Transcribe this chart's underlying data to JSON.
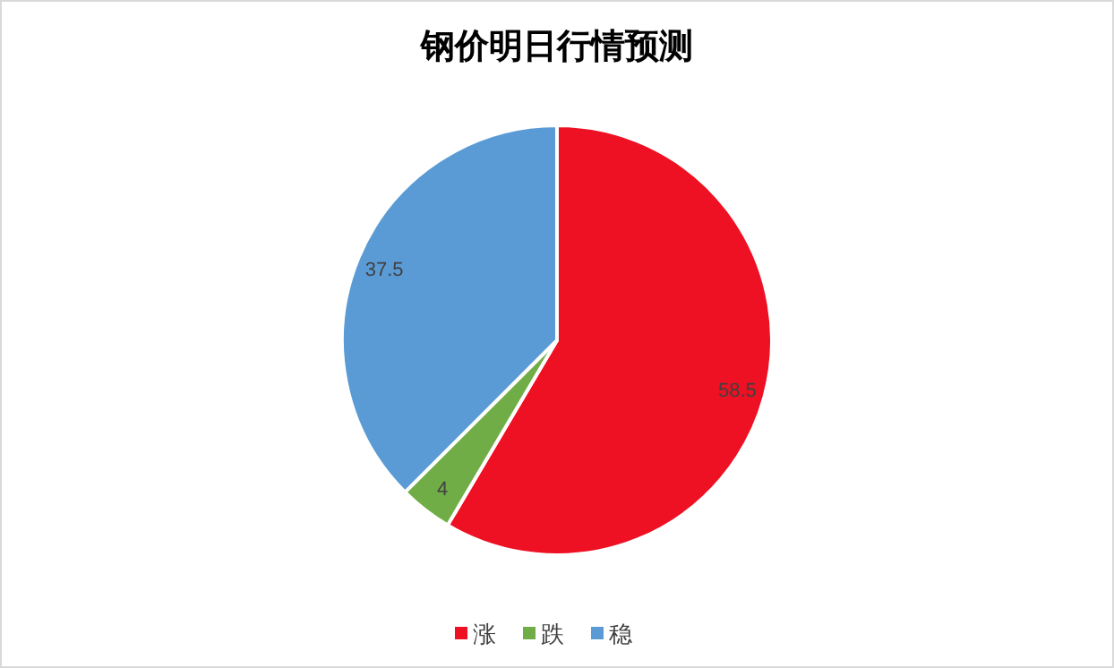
{
  "chart_data": {
    "type": "pie",
    "title": "钢价明日行情预测",
    "categories": [
      "涨",
      "跌",
      "稳"
    ],
    "values": [
      58.5,
      4,
      37.5
    ],
    "colors": [
      "#ee1123",
      "#70ad47",
      "#5b9bd5"
    ],
    "data_labels": true,
    "legend": "bottom"
  }
}
